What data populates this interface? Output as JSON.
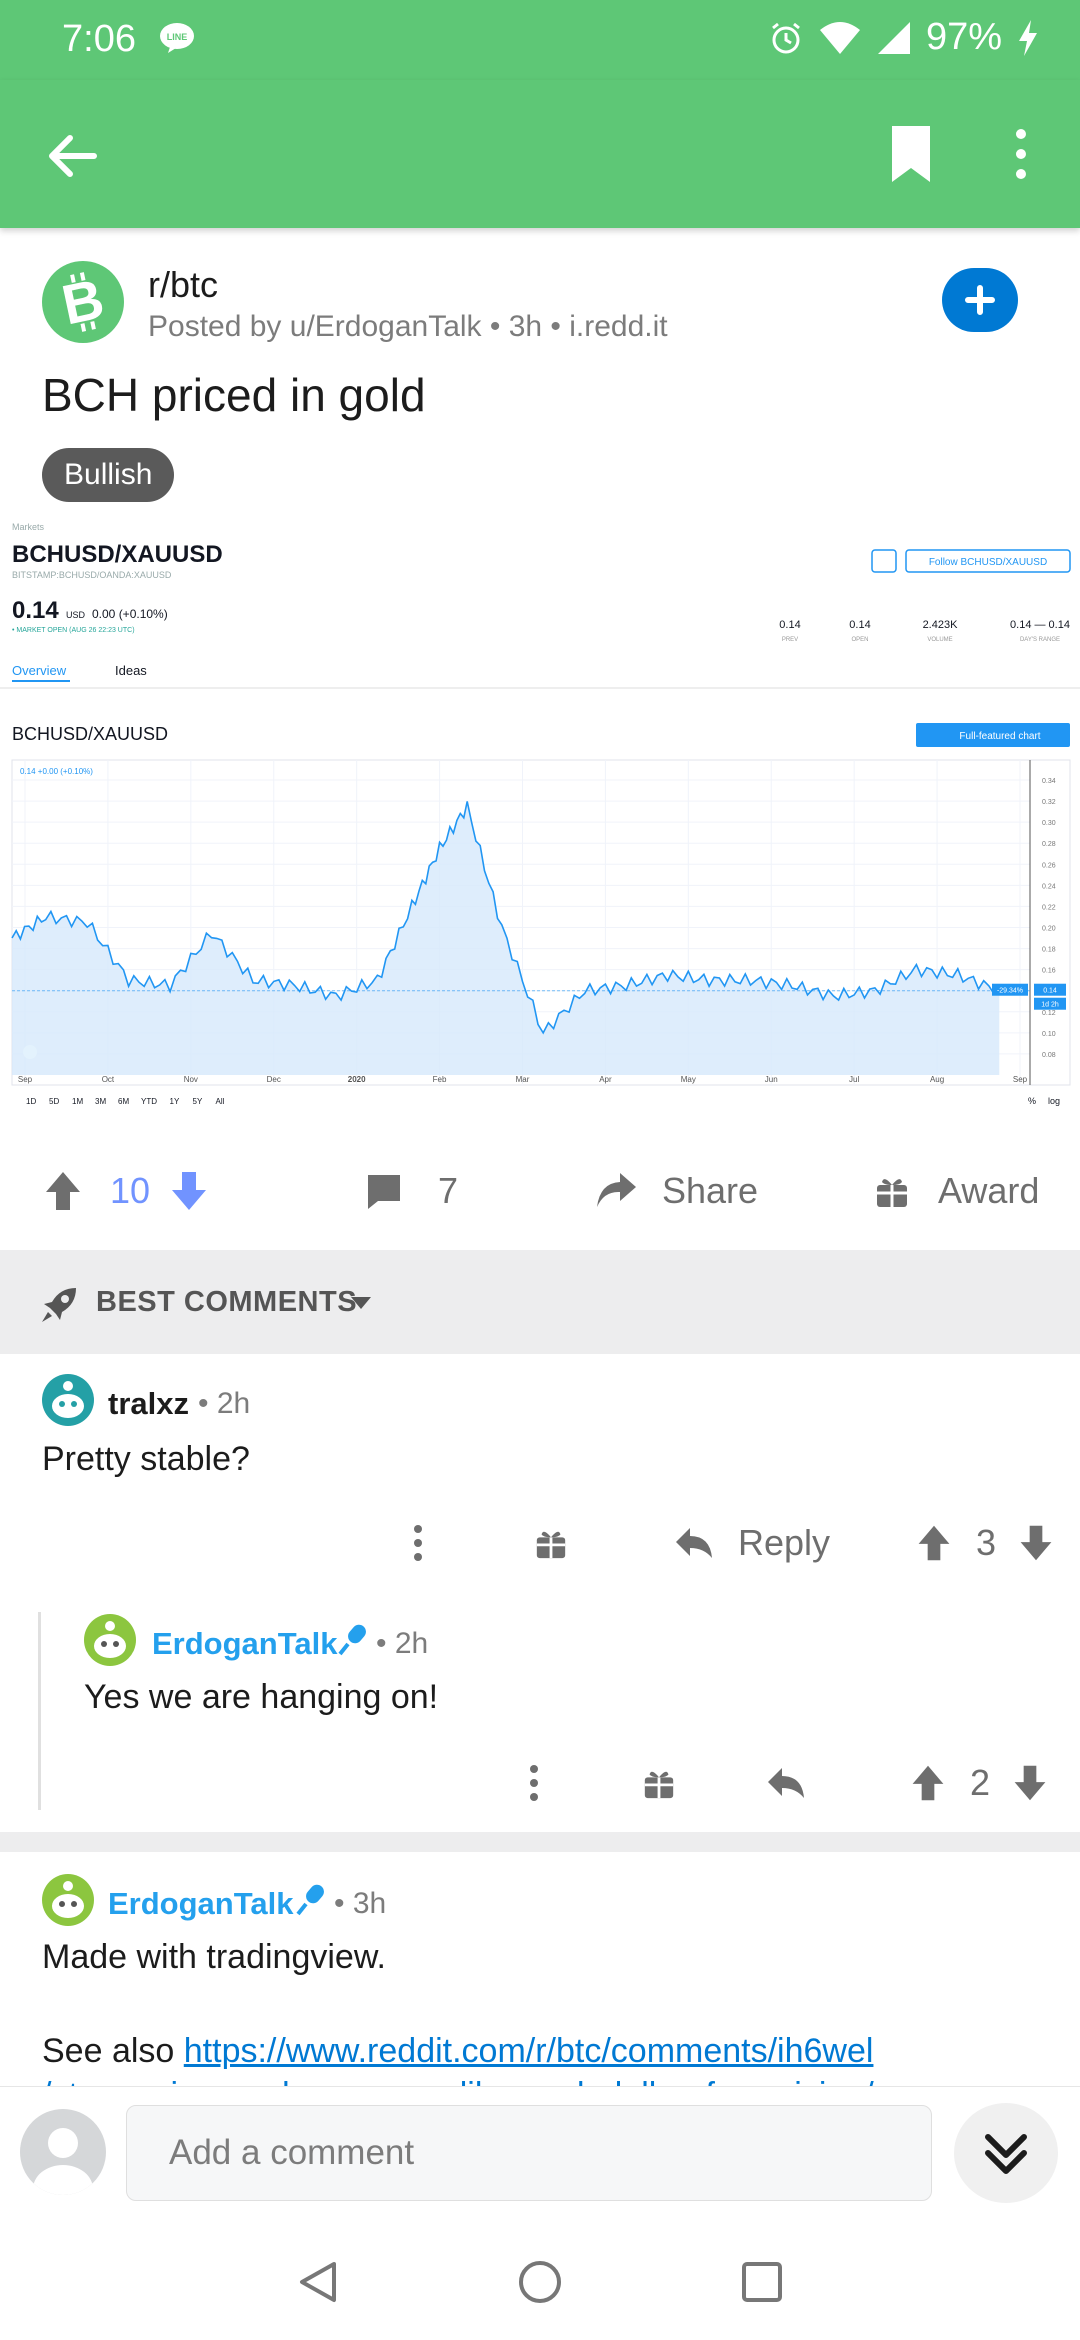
{
  "status_bar": {
    "time": "7:06",
    "battery": "97%",
    "line_badge": "LINE"
  },
  "post": {
    "subreddit": "r/btc",
    "meta": "Posted by u/ErdoganTalk • 3h • i.redd.it",
    "title": "BCH priced in gold",
    "flair": "Bullish",
    "votes": "10",
    "comments": "7",
    "share_label": "Share",
    "award_label": "Award"
  },
  "chart_image": {
    "markets_label": "Markets",
    "symbol": "BCHUSD/XAUUSD",
    "exchange": "BITSTAMP:BCHUSD/OANDA:XAUUSD",
    "price": "0.14",
    "currency": "USD",
    "change": "0.00 (+0.10%)",
    "market_status": "• MARKET OPEN (AUG 26 22:23 UTC)",
    "follow_label": "Follow BCHUSD/XAUUSD",
    "stats": [
      {
        "value": "0.14",
        "label": "PREV"
      },
      {
        "value": "0.14",
        "label": "OPEN"
      },
      {
        "value": "2.423K",
        "label": "VOLUME"
      },
      {
        "value": "0.14 — 0.14",
        "label": "DAY'S RANGE"
      }
    ],
    "tabs": [
      "Overview",
      "Ideas"
    ],
    "chart_title": "BCHUSD/XAUUSD",
    "full_chart_label": "Full-featured chart",
    "legend": "0.14 +0.00 (+0.10%)",
    "price_tag": "0.14",
    "pct_tag": "-29.34%",
    "time_tag": "1d 2h",
    "ranges": [
      "1D",
      "5D",
      "1M",
      "3M",
      "6M",
      "YTD",
      "1Y",
      "5Y",
      "All"
    ],
    "pct_label": "%",
    "log_label": "log"
  },
  "chart_data": {
    "type": "area",
    "title": "BCHUSD/XAUUSD",
    "xlabel": "",
    "ylabel": "",
    "ylim": [
      0.06,
      0.34
    ],
    "y_ticks": [
      0.34,
      0.32,
      0.3,
      0.28,
      0.26,
      0.24,
      0.22,
      0.2,
      0.18,
      0.16,
      0.14,
      0.12,
      0.1,
      0.08
    ],
    "x_ticks": [
      "Sep",
      "Oct",
      "Nov",
      "Dec",
      "2020",
      "Feb",
      "Mar",
      "Apr",
      "May",
      "Jun",
      "Jul",
      "Aug",
      "Sep"
    ],
    "x": [
      "Sep",
      "Sep",
      "Oct",
      "Oct",
      "Nov",
      "Nov",
      "Dec",
      "Dec",
      "2020",
      "2020",
      "Feb",
      "Feb",
      "Feb",
      "Mar",
      "Mar",
      "Apr",
      "Apr",
      "May",
      "May",
      "Jun",
      "Jun",
      "Jul",
      "Jul",
      "Aug",
      "Aug",
      "Sep"
    ],
    "series": [
      {
        "values": [
          0.19,
          0.21,
          0.205,
          0.15,
          0.145,
          0.195,
          0.15,
          0.145,
          0.135,
          0.15,
          0.22,
          0.275,
          0.315,
          0.2,
          0.1,
          0.14,
          0.145,
          0.155,
          0.15,
          0.15,
          0.145,
          0.135,
          0.14,
          0.16,
          0.155,
          0.14
        ]
      }
    ]
  },
  "sort": {
    "label": "BEST COMMENTS"
  },
  "comments": [
    {
      "user": "tralxz",
      "time": "• 2h",
      "body": "Pretty stable?",
      "reply_label": "Reply",
      "votes": "3"
    },
    {
      "user": "ErdoganTalk",
      "time": "• 2h",
      "body": "Yes we are hanging on!",
      "votes": "2"
    },
    {
      "user": "ErdoganTalk",
      "time": "• 3h",
      "body": "Made with tradingview.",
      "body2_prefix": "See also ",
      "link": "https://www.reddit.com/r/btc/comments/ih6wel",
      "link2": "/stop_using_usd_measure_like_usd_dollar_for_pricing/"
    }
  ],
  "bottom": {
    "placeholder": "Add a comment"
  },
  "colors": {
    "green": "#5ec776",
    "blue": "#0079d3",
    "upvoted": "#7193ff"
  }
}
